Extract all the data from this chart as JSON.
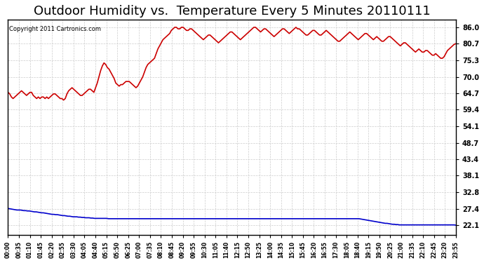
{
  "title": "Outdoor Humidity vs.  Temperature Every 5 Minutes 20110111",
  "copyright_text": "Copyright 2011 Cartronics.com",
  "yticks": [
    22.1,
    27.4,
    32.8,
    38.1,
    43.4,
    48.7,
    54.1,
    59.4,
    64.7,
    70.0,
    75.3,
    80.7,
    86.0
  ],
  "ymin": 19.0,
  "ymax": 88.5,
  "bg_color": "#ffffff",
  "plot_bg_color": "#ffffff",
  "grid_color": "#cccccc",
  "title_fontsize": 13,
  "humidity_color": "#cc0000",
  "temp_color": "#0000cc",
  "humidity_data": [
    65.0,
    64.5,
    63.5,
    63.0,
    63.5,
    64.0,
    64.5,
    65.0,
    65.5,
    65.0,
    64.5,
    64.0,
    64.5,
    65.0,
    65.0,
    64.0,
    63.5,
    63.0,
    63.5,
    63.0,
    63.5,
    63.5,
    63.0,
    63.5,
    63.0,
    63.5,
    64.0,
    64.5,
    64.5,
    64.0,
    63.5,
    63.0,
    63.0,
    62.5,
    63.0,
    64.5,
    65.5,
    66.0,
    66.5,
    66.0,
    65.5,
    65.0,
    64.5,
    64.0,
    64.0,
    64.5,
    65.0,
    65.5,
    66.0,
    66.0,
    65.5,
    65.0,
    66.5,
    68.0,
    70.0,
    72.0,
    73.5,
    74.5,
    74.0,
    73.0,
    72.5,
    71.5,
    70.5,
    69.5,
    68.0,
    67.5,
    67.0,
    67.5,
    67.5,
    68.0,
    68.5,
    68.5,
    68.5,
    68.0,
    67.5,
    67.0,
    66.5,
    67.0,
    68.0,
    69.0,
    70.0,
    71.5,
    73.0,
    74.0,
    74.5,
    75.0,
    75.5,
    76.0,
    77.5,
    79.0,
    80.0,
    81.0,
    82.0,
    82.5,
    83.0,
    83.5,
    84.0,
    85.0,
    85.5,
    86.0,
    86.0,
    85.5,
    85.5,
    86.0,
    86.0,
    85.5,
    85.0,
    85.0,
    85.5,
    85.5,
    85.0,
    84.5,
    84.0,
    83.5,
    83.0,
    82.5,
    82.0,
    82.5,
    83.0,
    83.5,
    83.5,
    83.0,
    82.5,
    82.0,
    81.5,
    81.0,
    81.5,
    82.0,
    82.5,
    83.0,
    83.5,
    84.0,
    84.5,
    84.5,
    84.0,
    83.5,
    83.0,
    82.5,
    82.0,
    82.5,
    83.0,
    83.5,
    84.0,
    84.5,
    85.0,
    85.5,
    86.0,
    86.0,
    85.5,
    85.0,
    84.5,
    85.0,
    85.5,
    85.5,
    85.0,
    84.5,
    84.0,
    83.5,
    83.0,
    83.5,
    84.0,
    84.5,
    85.0,
    85.5,
    85.5,
    85.0,
    84.5,
    84.0,
    84.5,
    85.0,
    85.5,
    86.0,
    85.5,
    85.5,
    85.0,
    84.5,
    84.0,
    83.5,
    83.5,
    84.0,
    84.5,
    85.0,
    85.0,
    84.5,
    84.0,
    83.5,
    83.5,
    84.0,
    84.5,
    85.0,
    84.5,
    84.0,
    83.5,
    83.0,
    82.5,
    82.0,
    81.5,
    81.5,
    82.0,
    82.5,
    83.0,
    83.5,
    84.0,
    84.5,
    84.0,
    83.5,
    83.0,
    82.5,
    82.0,
    82.5,
    83.0,
    83.5,
    84.0,
    84.0,
    83.5,
    83.0,
    82.5,
    82.0,
    82.5,
    83.0,
    82.5,
    82.0,
    81.5,
    81.5,
    82.0,
    82.5,
    83.0,
    83.0,
    82.5,
    82.0,
    81.5,
    81.0,
    80.5,
    80.0,
    80.5,
    81.0,
    81.0,
    80.5,
    80.0,
    79.5,
    79.0,
    78.5,
    78.0,
    78.5,
    79.0,
    78.5,
    78.0,
    78.0,
    78.5,
    78.5,
    78.0,
    77.5,
    77.0,
    77.0,
    77.5,
    77.0,
    76.5,
    76.0,
    76.0,
    76.5,
    77.5,
    78.5,
    79.0,
    79.5,
    80.0,
    80.5,
    80.7
  ],
  "temp_data": [
    27.5,
    27.4,
    27.3,
    27.2,
    27.1,
    27.0,
    27.0,
    27.0,
    26.9,
    26.8,
    26.8,
    26.7,
    26.7,
    26.6,
    26.5,
    26.4,
    26.4,
    26.3,
    26.2,
    26.1,
    26.1,
    26.0,
    25.9,
    25.8,
    25.7,
    25.6,
    25.6,
    25.5,
    25.5,
    25.4,
    25.3,
    25.2,
    25.2,
    25.1,
    25.0,
    25.0,
    24.9,
    24.8,
    24.8,
    24.8,
    24.7,
    24.7,
    24.6,
    24.6,
    24.5,
    24.5,
    24.5,
    24.4,
    24.4,
    24.3,
    24.3,
    24.3,
    24.3,
    24.3,
    24.3,
    24.3,
    24.3,
    24.2,
    24.2,
    24.2,
    24.2,
    24.2,
    24.2,
    24.2,
    24.2,
    24.2,
    24.2,
    24.2,
    24.2,
    24.2,
    24.2,
    24.2,
    24.2,
    24.2,
    24.2,
    24.2,
    24.2,
    24.2,
    24.2,
    24.2,
    24.2,
    24.2,
    24.2,
    24.2,
    24.2,
    24.2,
    24.2,
    24.2,
    24.2,
    24.2,
    24.2,
    24.2,
    24.2,
    24.2,
    24.2,
    24.2,
    24.2,
    24.2,
    24.2,
    24.2,
    24.2,
    24.2,
    24.2,
    24.2,
    24.2,
    24.2,
    24.2,
    24.2,
    24.2,
    24.2,
    24.2,
    24.2,
    24.2,
    24.2,
    24.2,
    24.2,
    24.2,
    24.2,
    24.2,
    24.2,
    24.2,
    24.2,
    24.2,
    24.2,
    24.2,
    24.2,
    24.2,
    24.2,
    24.2,
    24.2,
    24.2,
    24.2,
    24.2,
    24.2,
    24.2,
    24.2,
    24.2,
    24.2,
    24.2,
    24.2,
    24.2,
    24.2,
    24.2,
    24.2,
    24.2,
    24.2,
    24.2,
    24.2,
    24.2,
    24.2,
    24.2,
    24.2,
    24.2,
    24.2,
    24.2,
    24.2,
    24.2,
    24.2,
    24.2,
    24.2,
    24.2,
    24.2,
    24.2,
    24.2,
    24.2,
    24.2,
    24.2,
    24.2,
    24.2,
    24.2,
    24.2,
    24.2,
    24.2,
    24.2,
    24.2,
    24.2,
    24.2,
    24.2,
    24.2,
    24.2,
    24.2,
    24.2,
    24.2,
    24.2,
    24.2,
    24.2,
    24.2,
    24.2,
    24.2,
    24.2,
    24.2,
    24.2,
    24.2,
    24.2,
    24.2,
    24.2,
    24.2,
    24.2,
    24.2,
    24.2,
    24.1,
    24.0,
    23.9,
    23.8,
    23.7,
    23.6,
    23.5,
    23.4,
    23.3,
    23.2,
    23.1,
    23.0,
    22.9,
    22.8,
    22.7,
    22.7,
    22.6,
    22.5,
    22.4,
    22.4,
    22.3,
    22.3,
    22.2,
    22.2,
    22.2,
    22.2,
    22.2,
    22.2,
    22.2,
    22.2,
    22.2,
    22.2,
    22.2,
    22.2,
    22.2,
    22.2,
    22.2,
    22.2,
    22.2,
    22.2,
    22.2,
    22.2,
    22.2,
    22.2,
    22.2,
    22.2,
    22.2,
    22.2,
    22.2,
    22.2,
    22.2,
    22.2,
    22.2,
    22.2,
    22.1
  ],
  "xtick_labels": [
    "00:00",
    "00:35",
    "01:10",
    "01:45",
    "02:20",
    "02:55",
    "03:30",
    "04:05",
    "04:40",
    "05:15",
    "05:50",
    "06:25",
    "07:00",
    "07:35",
    "08:10",
    "08:45",
    "09:20",
    "09:55",
    "10:30",
    "11:05",
    "11:40",
    "12:15",
    "12:50",
    "13:25",
    "14:00",
    "14:35",
    "15:10",
    "15:45",
    "16:20",
    "16:55",
    "17:30",
    "18:05",
    "18:40",
    "19:15",
    "19:50",
    "20:25",
    "21:00",
    "21:35",
    "22:10",
    "22:45",
    "23:20",
    "23:55"
  ]
}
